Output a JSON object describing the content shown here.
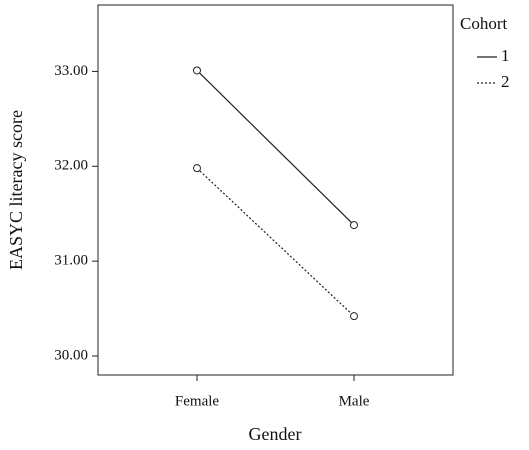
{
  "chart_data": {
    "type": "line",
    "categories": [
      "Female",
      "Male"
    ],
    "series": [
      {
        "name": "1",
        "color": "#222222",
        "linestyle": "solid",
        "values": [
          33.01,
          31.38
        ]
      },
      {
        "name": "2",
        "color": "#222222",
        "linestyle": "dashed",
        "values": [
          31.98,
          30.42
        ]
      }
    ],
    "xlabel": "Gender",
    "ylabel": "EASYC literacy score",
    "legend_title": "Cohort",
    "legend": "outside-right",
    "ylim": [
      29.8,
      33.7
    ],
    "yticks": [
      {
        "value": 30,
        "label": "30.00"
      },
      {
        "value": 31,
        "label": "31.00"
      },
      {
        "value": 32,
        "label": "32.00"
      },
      {
        "value": 33,
        "label": "33.00"
      }
    ],
    "grid": false,
    "markers": "open-circle"
  }
}
